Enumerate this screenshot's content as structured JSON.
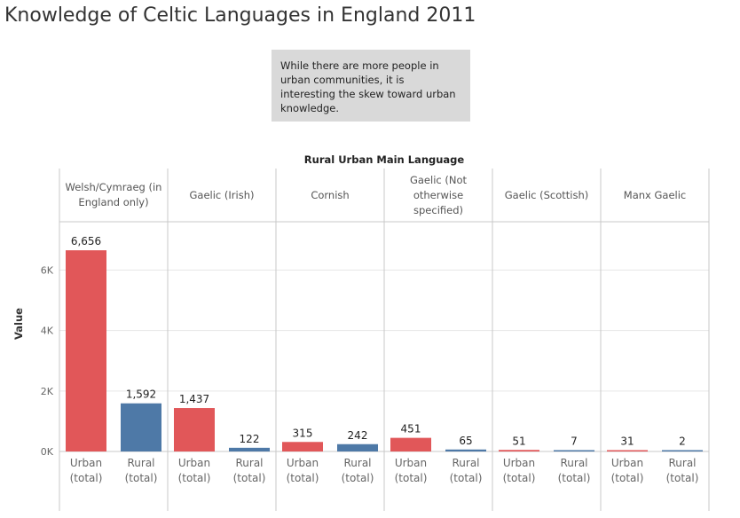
{
  "title": "Knowledge of Celtic Languages in England 2011",
  "annotation": "While there are more people in urban communities, it is interesting the skew toward urban knowledge.",
  "colors": {
    "urban": "#e15759",
    "rural": "#4e79a7",
    "grid": "#e6e6e6",
    "axis": "#c8c8c8"
  },
  "chart_data": {
    "type": "bar",
    "column_header": "Rural Urban Main Language",
    "ylabel": "Value",
    "ylim": [
      0,
      7600
    ],
    "yticks": [
      0,
      2000,
      4000,
      6000
    ],
    "ytick_labels": [
      "0K",
      "2K",
      "4K",
      "6K"
    ],
    "categories": [
      "Welsh/Cymraeg (in England only)",
      "Gaelic (Irish)",
      "Cornish",
      "Gaelic (Not otherwise specified)",
      "Gaelic (Scottish)",
      "Manx Gaelic"
    ],
    "bar_labels": [
      "Urban (total)",
      "Rural (total)"
    ],
    "series": [
      {
        "name": "Urban (total)",
        "values": [
          6656,
          1437,
          315,
          451,
          51,
          31
        ],
        "labels": [
          "6,656",
          "1,437",
          "315",
          "451",
          "51",
          "31"
        ]
      },
      {
        "name": "Rural (total)",
        "values": [
          1592,
          122,
          242,
          65,
          7,
          2
        ],
        "labels": [
          "1,592",
          "122",
          "242",
          "65",
          "7",
          "2"
        ]
      }
    ]
  }
}
